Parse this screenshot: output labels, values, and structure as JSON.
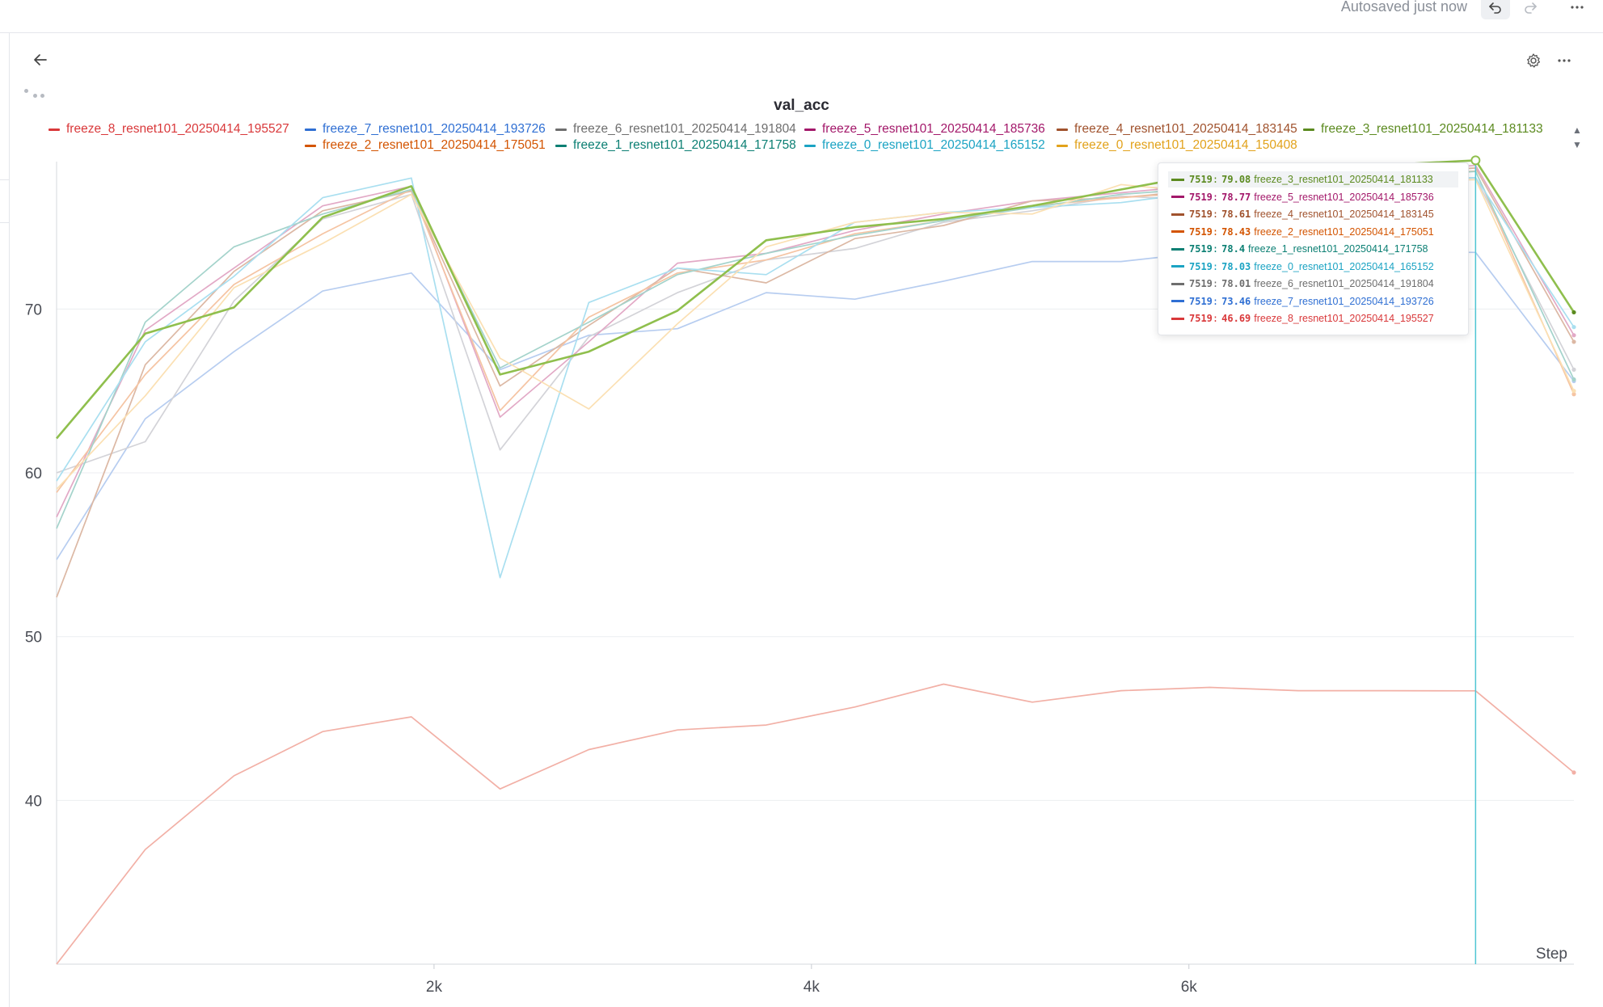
{
  "header": {
    "autosave_text": "Autosaved just now",
    "undo_icon": "undo-icon",
    "redo_icon": "redo-icon",
    "more_icon": "more-horizontal-icon"
  },
  "panel": {
    "back_icon": "arrow-left-icon",
    "settings_icon": "gear-icon",
    "more_icon": "more-horizontal-icon",
    "loading_icon": "loading-dots-icon"
  },
  "tooltip": {
    "rows": [
      {
        "step": "7519",
        "value": "79.08",
        "name": "freeze_3_resnet101_20250414_181133",
        "color": "#5b8a1f",
        "highlight": true
      },
      {
        "step": "7519",
        "value": "78.77",
        "name": "freeze_5_resnet101_20250414_185736",
        "color": "#a3186a"
      },
      {
        "step": "7519",
        "value": "78.61",
        "name": "freeze_4_resnet101_20250414_183145",
        "color": "#a0522d"
      },
      {
        "step": "7519",
        "value": "78.43",
        "name": "freeze_2_resnet101_20250414_175051",
        "color": "#d35400"
      },
      {
        "step": "7519",
        "value": "78.4",
        "name": "freeze_1_resnet101_20250414_171758",
        "color": "#0b7f73"
      },
      {
        "step": "7519",
        "value": "78.03",
        "name": "freeze_0_resnet101_20250414_165152",
        "color": "#1ba3c3"
      },
      {
        "step": "7519",
        "value": "78.01",
        "name": "freeze_6_resnet101_20250414_191804",
        "color": "#6e6e6e"
      },
      {
        "step": "7519",
        "value": "73.46",
        "name": "freeze_7_resnet101_20250414_193726",
        "color": "#2f6fd3"
      },
      {
        "step": "7519",
        "value": "46.69",
        "name": "freeze_8_resnet101_20250414_195527",
        "color": "#d9383a"
      }
    ]
  },
  "chart_data": {
    "type": "line",
    "title": "val_acc",
    "xlabel": "Step",
    "ylabel": "",
    "xlim": [
      0,
      8040
    ],
    "ylim": [
      30,
      79
    ],
    "x_ticks": [
      2000,
      4000,
      6000
    ],
    "x_tick_labels": [
      "2k",
      "4k",
      "6k"
    ],
    "y_ticks": [
      40,
      50,
      60,
      70
    ],
    "y_tick_labels": [
      "40",
      "50",
      "60",
      "70"
    ],
    "grid": true,
    "legend_position": "top",
    "hover_step": 7519,
    "x": [
      0,
      470,
      940,
      1410,
      1880,
      2350,
      2820,
      3290,
      3760,
      4230,
      4700,
      5170,
      5640,
      6110,
      6580,
      7050,
      7519,
      8040
    ],
    "series": [
      {
        "name": "freeze_8_resnet101_20250414_195527",
        "color": "#d9383a",
        "line_color": "#f2b0a6",
        "emphasis": false,
        "values": [
          30.0,
          37.0,
          41.5,
          44.2,
          45.1,
          40.7,
          43.1,
          44.3,
          44.6,
          45.7,
          47.1,
          46.0,
          46.7,
          46.9,
          46.7,
          46.7,
          46.69,
          41.7
        ]
      },
      {
        "name": "freeze_7_resnet101_20250414_193726",
        "color": "#2f6fd3",
        "line_color": "#b7cdf0",
        "emphasis": false,
        "values": [
          54.7,
          63.3,
          67.4,
          71.1,
          72.2,
          66.3,
          68.4,
          68.8,
          71.0,
          70.6,
          71.7,
          72.9,
          72.9,
          73.5,
          73.5,
          73.5,
          73.46,
          65.6
        ]
      },
      {
        "name": "freeze_6_resnet101_20250414_191804",
        "color": "#6e6e6e",
        "line_color": "#d3d3d8",
        "emphasis": false,
        "values": [
          60.0,
          61.9,
          70.5,
          75.5,
          77.0,
          61.4,
          68.3,
          71.0,
          73.0,
          73.7,
          75.3,
          76.0,
          76.9,
          76.6,
          77.4,
          77.9,
          78.01,
          66.3
        ]
      },
      {
        "name": "freeze_5_resnet101_20250414_185736",
        "color": "#a3186a",
        "line_color": "#e2a9c6",
        "emphasis": false,
        "values": [
          57.3,
          68.7,
          72.5,
          76.3,
          77.5,
          63.4,
          68.0,
          72.8,
          73.4,
          74.8,
          75.8,
          76.6,
          77.1,
          77.6,
          78.0,
          78.4,
          78.77,
          68.4
        ]
      },
      {
        "name": "freeze_4_resnet101_20250414_183145",
        "color": "#a0522d",
        "line_color": "#dcb8a4",
        "emphasis": false,
        "values": [
          52.4,
          66.6,
          72.3,
          76.0,
          77.2,
          65.3,
          69.0,
          72.5,
          71.6,
          74.3,
          75.1,
          76.6,
          76.8,
          77.3,
          77.6,
          78.3,
          78.61,
          68.0
        ]
      },
      {
        "name": "freeze_3_resnet101_20250414_181133",
        "color": "#5b8a1f",
        "line_color": "#8fbf4d",
        "emphasis": true,
        "values": [
          62.1,
          68.5,
          70.1,
          75.6,
          77.5,
          66.0,
          67.4,
          69.9,
          74.2,
          75.0,
          75.5,
          76.3,
          77.3,
          78.3,
          78.6,
          78.8,
          79.08,
          69.8
        ]
      },
      {
        "name": "freeze_2_resnet101_20250414_175051",
        "color": "#d35400",
        "line_color": "#f5c4a3",
        "emphasis": false,
        "values": [
          58.8,
          66.0,
          71.5,
          74.6,
          77.3,
          63.8,
          69.5,
          72.2,
          73.0,
          74.6,
          75.4,
          76.3,
          76.8,
          77.2,
          77.5,
          78.0,
          78.43,
          64.8
        ]
      },
      {
        "name": "freeze_1_resnet101_20250414_171758",
        "color": "#0b7f73",
        "line_color": "#a4d3cb",
        "emphasis": false,
        "values": [
          56.6,
          69.2,
          73.8,
          75.8,
          77.3,
          66.4,
          69.2,
          72.1,
          73.4,
          74.5,
          75.4,
          76.2,
          77.0,
          77.4,
          77.8,
          78.1,
          78.4,
          65.7
        ]
      },
      {
        "name": "freeze_0_resnet101_20250414_165152",
        "color": "#1ba3c3",
        "line_color": "#a9dff0",
        "emphasis": false,
        "values": [
          59.5,
          68.0,
          72.0,
          76.8,
          78.0,
          53.6,
          70.4,
          72.5,
          72.1,
          75.3,
          75.9,
          76.2,
          76.5,
          77.2,
          77.6,
          77.8,
          78.03,
          68.9
        ]
      },
      {
        "name": "freeze_0_resnet101_20250414_150408",
        "color": "#e2a21b",
        "line_color": "#fbe0b3",
        "emphasis": false,
        "values": [
          59.0,
          64.7,
          71.3,
          74.0,
          77.0,
          67.0,
          63.9,
          69.1,
          73.8,
          75.3,
          75.9,
          75.8,
          77.6,
          77.1,
          77.4,
          77.8,
          77.9,
          65.0
        ]
      }
    ]
  }
}
